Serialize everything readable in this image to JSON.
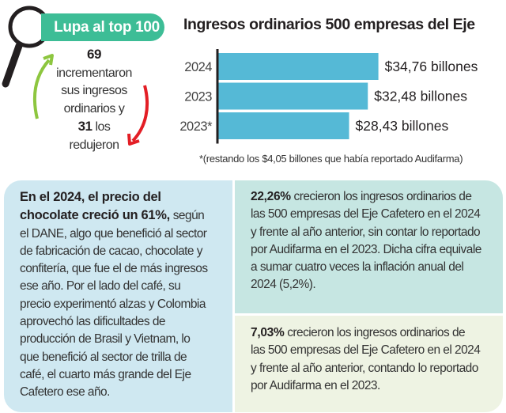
{
  "badge": {
    "label": "Lupa al top 100",
    "color": "#3dbd96",
    "icon": "magnifier-icon"
  },
  "summary": {
    "increased_count": "69",
    "increased_text": [
      "incrementaron",
      "sus ingresos",
      "ordinarios y"
    ],
    "decreased_count": "31",
    "decreased_text_inline": " los",
    "decreased_text": "redujeron",
    "up_arrow_color": "#8dc63f",
    "down_arrow_color": "#e31e25"
  },
  "chart_data": {
    "type": "bar",
    "orientation": "horizontal",
    "title": "Ingresos ordinarios 500 empresas del Eje",
    "categories": [
      "2024",
      "2023",
      "2023*"
    ],
    "values": [
      34.76,
      32.48,
      28.43
    ],
    "data_labels": [
      "$34,76 billones",
      "$32,48 billones",
      "$28,43 billones"
    ],
    "unit": "billones",
    "bar_color": "#55b9d6",
    "grid": false,
    "footnote": "*(restando los $4,05 billones que había reportado Audifarma)"
  },
  "boxes": {
    "left": {
      "color": "#cfe8f1",
      "lines": [
        {
          "b": "En el 2024, el precio del",
          "t": ""
        },
        {
          "b": "chocolate creció un 61%,",
          "t": " según"
        },
        {
          "b": "",
          "t": "el DANE, algo que benefició al sector"
        },
        {
          "b": "",
          "t": "de fabricación de cacao, chocolate y"
        },
        {
          "b": "",
          "t": "confitería, que fue el de más ingresos"
        },
        {
          "b": "",
          "t": "ese año. Por el lado del café, su"
        },
        {
          "b": "",
          "t": "precio experimentó alzas y Colombia"
        },
        {
          "b": "",
          "t": "aprovechó las dificultades de"
        },
        {
          "b": "",
          "t": "producción de Brasil y Vietnam, lo"
        },
        {
          "b": "",
          "t": "que benefició al sector de trilla de"
        },
        {
          "b": "",
          "t": "café, el cuarto más grande del Eje"
        },
        {
          "b": "",
          "t": "Cafetero ese año."
        }
      ]
    },
    "right_top": {
      "color": "#c6e6e2",
      "lines": [
        {
          "b": "22,26%",
          "t": " crecieron los ingresos ordinarios de"
        },
        {
          "b": "",
          "t": "las 500 empresas del Eje Cafetero en el 2024"
        },
        {
          "b": "",
          "t": "y frente al año anterior, sin contar lo reportado"
        },
        {
          "b": "",
          "t": "por Audifarma en el 2023. Dicha cifra equivale"
        },
        {
          "b": "",
          "t": "a sumar cuatro veces la inflación anual del"
        },
        {
          "b": "",
          "t": "2024 (5,2%)."
        }
      ]
    },
    "right_bottom": {
      "color": "#eef3e3",
      "lines": [
        {
          "b": "7,03%",
          "t": " crecieron los ingresos ordinarios de"
        },
        {
          "b": "",
          "t": "las 500 empresas del Eje Cafetero en el 2024"
        },
        {
          "b": "",
          "t": "y frente al año anterior, contando lo reportado"
        },
        {
          "b": "",
          "t": "por Audifarma en el 2023."
        }
      ]
    }
  }
}
